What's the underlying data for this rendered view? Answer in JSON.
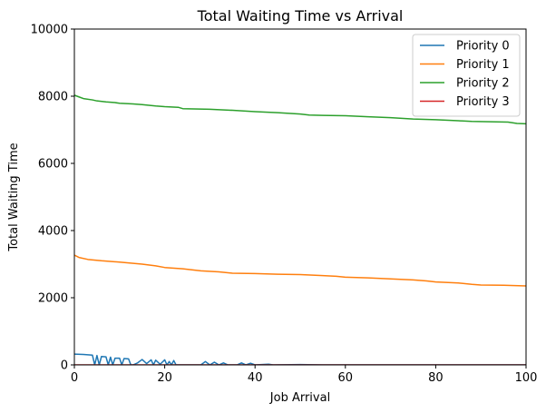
{
  "chart_data": {
    "type": "line",
    "title": "Total Waiting Time vs Arrival",
    "xlabel": "Job Arrival",
    "ylabel": "Total Waiting Time",
    "xlim": [
      0,
      100
    ],
    "ylim": [
      0,
      10000
    ],
    "xticks": [
      0,
      20,
      40,
      60,
      80,
      100
    ],
    "yticks": [
      0,
      2000,
      4000,
      6000,
      8000,
      10000
    ],
    "grid": false,
    "legend_position": "top-right",
    "series": [
      {
        "name": "Priority 0",
        "color": "#1f77b4",
        "points": [
          [
            0,
            320
          ],
          [
            2,
            310
          ],
          [
            4,
            290
          ],
          [
            4.5,
            0
          ],
          [
            5,
            280
          ],
          [
            5.5,
            0
          ],
          [
            6,
            250
          ],
          [
            7,
            240
          ],
          [
            7.5,
            0
          ],
          [
            8,
            230
          ],
          [
            8.5,
            0
          ],
          [
            9,
            200
          ],
          [
            10,
            200
          ],
          [
            10.5,
            0
          ],
          [
            11,
            190
          ],
          [
            12,
            180
          ],
          [
            12.5,
            0
          ],
          [
            13,
            0
          ],
          [
            14,
            60
          ],
          [
            15,
            160
          ],
          [
            16,
            40
          ],
          [
            17,
            150
          ],
          [
            17.5,
            0
          ],
          [
            18,
            140
          ],
          [
            19,
            20
          ],
          [
            20,
            150
          ],
          [
            20.5,
            0
          ],
          [
            21,
            100
          ],
          [
            21.5,
            0
          ],
          [
            22,
            130
          ],
          [
            22.5,
            0
          ],
          [
            23,
            0
          ],
          [
            28,
            0
          ],
          [
            29,
            100
          ],
          [
            30,
            0
          ],
          [
            31,
            80
          ],
          [
            32,
            0
          ],
          [
            33,
            60
          ],
          [
            34,
            0
          ],
          [
            36,
            0
          ],
          [
            37,
            60
          ],
          [
            38,
            0
          ],
          [
            39,
            50
          ],
          [
            40,
            0
          ],
          [
            43,
            20
          ],
          [
            44,
            0
          ],
          [
            50,
            10
          ],
          [
            55,
            0
          ],
          [
            60,
            0
          ],
          [
            70,
            0
          ],
          [
            80,
            0
          ],
          [
            90,
            0
          ],
          [
            100,
            0
          ]
        ]
      },
      {
        "name": "Priority 1",
        "color": "#ff7f0e",
        "points": [
          [
            0,
            3270
          ],
          [
            1,
            3200
          ],
          [
            3,
            3140
          ],
          [
            6,
            3100
          ],
          [
            10,
            3060
          ],
          [
            15,
            3000
          ],
          [
            18,
            2950
          ],
          [
            20,
            2900
          ],
          [
            24,
            2860
          ],
          [
            28,
            2800
          ],
          [
            32,
            2770
          ],
          [
            35,
            2730
          ],
          [
            40,
            2720
          ],
          [
            45,
            2700
          ],
          [
            50,
            2690
          ],
          [
            55,
            2660
          ],
          [
            58,
            2640
          ],
          [
            60,
            2610
          ],
          [
            65,
            2590
          ],
          [
            70,
            2560
          ],
          [
            75,
            2530
          ],
          [
            78,
            2500
          ],
          [
            80,
            2470
          ],
          [
            85,
            2440
          ],
          [
            88,
            2400
          ],
          [
            90,
            2380
          ],
          [
            95,
            2370
          ],
          [
            100,
            2350
          ]
        ]
      },
      {
        "name": "Priority 2",
        "color": "#2ca02c",
        "points": [
          [
            0,
            8030
          ],
          [
            1,
            7980
          ],
          [
            2,
            7930
          ],
          [
            4,
            7890
          ],
          [
            5,
            7860
          ],
          [
            7,
            7830
          ],
          [
            9,
            7810
          ],
          [
            10,
            7790
          ],
          [
            13,
            7770
          ],
          [
            15,
            7750
          ],
          [
            18,
            7710
          ],
          [
            20,
            7690
          ],
          [
            23,
            7670
          ],
          [
            24,
            7630
          ],
          [
            30,
            7610
          ],
          [
            35,
            7580
          ],
          [
            40,
            7540
          ],
          [
            45,
            7510
          ],
          [
            50,
            7470
          ],
          [
            52,
            7440
          ],
          [
            55,
            7430
          ],
          [
            60,
            7420
          ],
          [
            65,
            7390
          ],
          [
            70,
            7360
          ],
          [
            75,
            7320
          ],
          [
            80,
            7300
          ],
          [
            85,
            7270
          ],
          [
            88,
            7250
          ],
          [
            92,
            7240
          ],
          [
            96,
            7230
          ],
          [
            98,
            7190
          ],
          [
            100,
            7180
          ]
        ]
      },
      {
        "name": "Priority 3",
        "color": "#d62728",
        "points": [
          [
            0,
            0
          ],
          [
            20,
            0
          ],
          [
            40,
            0
          ],
          [
            60,
            0
          ],
          [
            80,
            0
          ],
          [
            100,
            0
          ]
        ]
      }
    ]
  }
}
